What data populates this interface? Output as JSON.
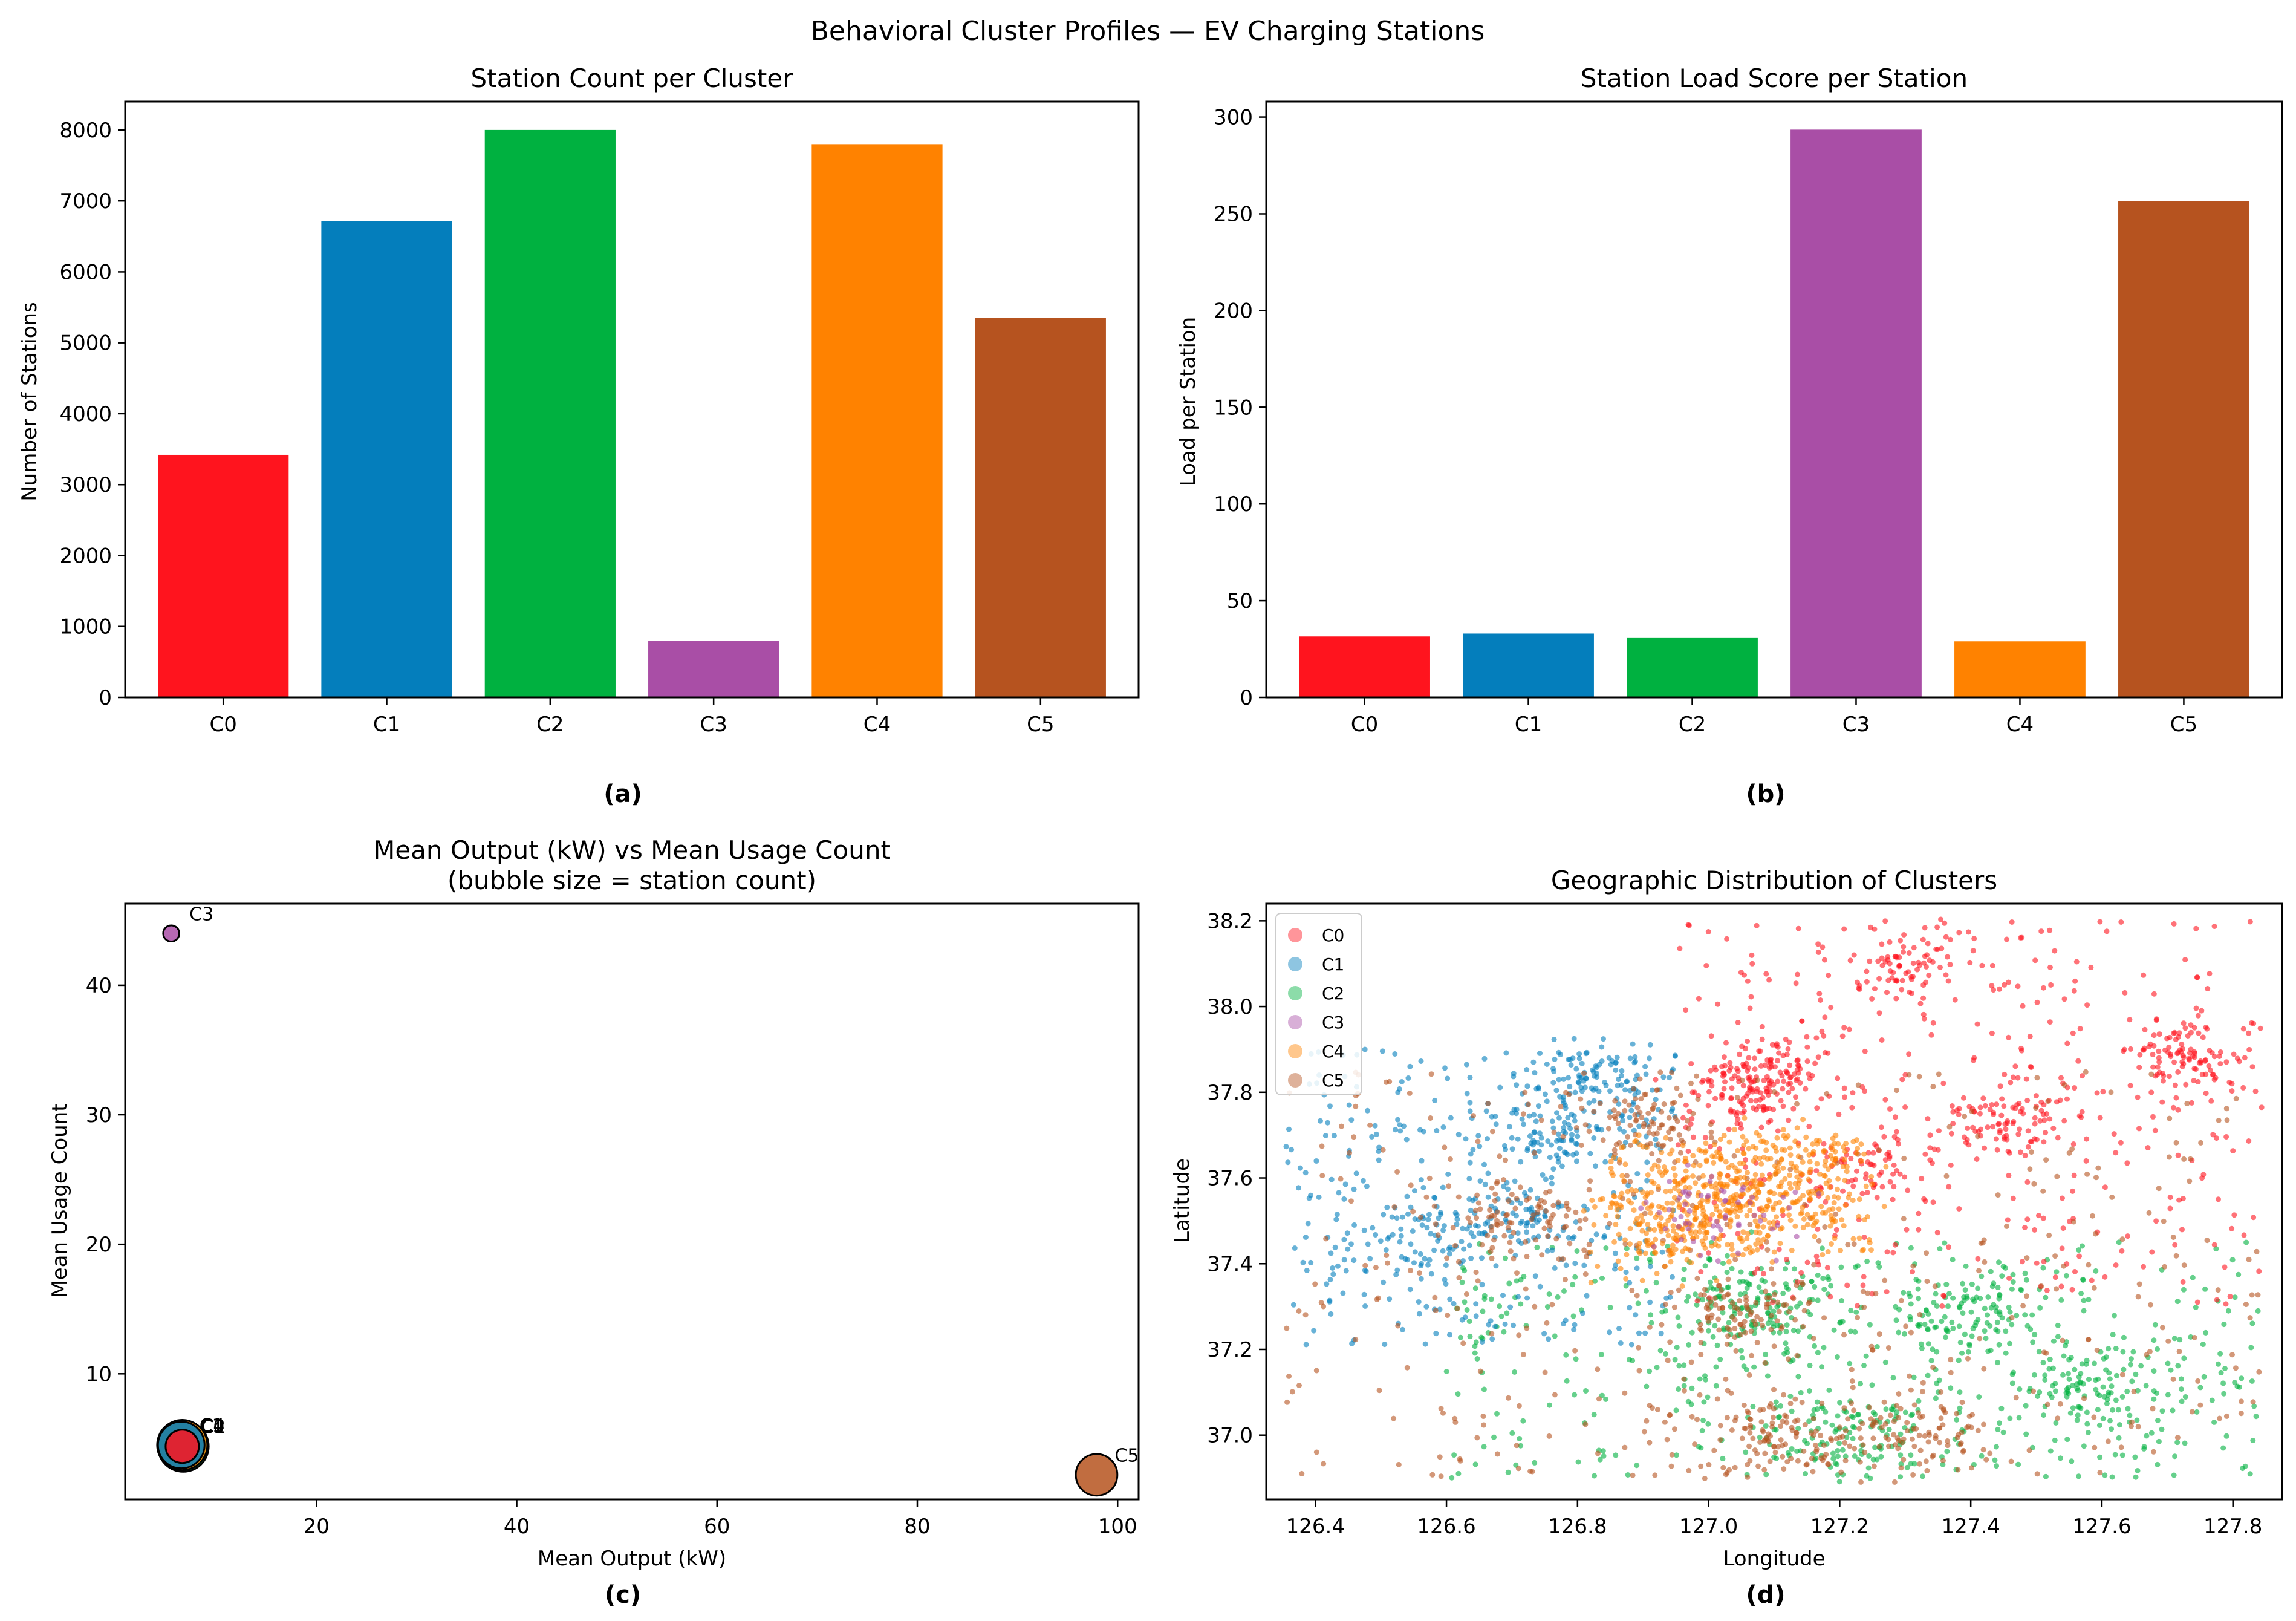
{
  "suptitle": "Behavioral Cluster Profiles — EV Charging Stations",
  "colors": {
    "C0": "#ff141e",
    "C1": "#047ebc",
    "C2": "#00b140",
    "C3": "#a94ea6",
    "C4": "#ff8200",
    "C5": "#b6531f"
  },
  "chart_data": [
    {
      "id": "a",
      "type": "bar",
      "title": "Station Count per Cluster",
      "panel_label": "(a)",
      "xlabel": "",
      "ylabel": "Number of Stations",
      "categories": [
        "C0",
        "C1",
        "C2",
        "C3",
        "C4",
        "C5"
      ],
      "values": [
        3420,
        6720,
        8000,
        800,
        7800,
        5350
      ],
      "ylim": [
        0,
        8400
      ],
      "yticks": [
        0,
        1000,
        2000,
        3000,
        4000,
        5000,
        6000,
        7000,
        8000
      ],
      "grid": false
    },
    {
      "id": "b",
      "type": "bar",
      "title": "Station Load Score per Station",
      "panel_label": "(b)",
      "xlabel": "",
      "ylabel": "Load per Station",
      "categories": [
        "C0",
        "C1",
        "C2",
        "C3",
        "C4",
        "C5"
      ],
      "values": [
        31.5,
        33,
        31,
        293.5,
        29,
        256.5
      ],
      "ylim": [
        0,
        308
      ],
      "yticks": [
        0,
        50,
        100,
        150,
        200,
        250,
        300
      ],
      "grid": false
    },
    {
      "id": "c",
      "type": "scatter",
      "title": "Mean Output (kW) vs Mean Usage Count",
      "subtitle": "(bubble size = station count)",
      "panel_label": "(c)",
      "xlabel": "Mean Output (kW)",
      "ylabel": "Mean Usage Count",
      "xlim": [
        0.9,
        102.1
      ],
      "ylim": [
        0.3,
        46.3
      ],
      "xticks": [
        20,
        40,
        60,
        80,
        100
      ],
      "yticks": [
        10,
        20,
        30,
        40
      ],
      "points": [
        {
          "label": "C0",
          "x": 6.6,
          "y": 4.4,
          "size": 3420
        },
        {
          "label": "C1",
          "x": 6.5,
          "y": 4.5,
          "size": 6720
        },
        {
          "label": "C2",
          "x": 6.7,
          "y": 4.4,
          "size": 8000
        },
        {
          "label": "C3",
          "x": 5.5,
          "y": 44.0,
          "size": 800
        },
        {
          "label": "C4",
          "x": 6.6,
          "y": 4.5,
          "size": 7800
        },
        {
          "label": "C5",
          "x": 97.9,
          "y": 2.2,
          "size": 5350
        }
      ],
      "grid": false
    },
    {
      "id": "d",
      "type": "scatter",
      "title": "Geographic Distribution of Clusters",
      "panel_label": "(d)",
      "xlabel": "Longitude",
      "ylabel": "Latitude",
      "xlim": [
        126.325,
        127.875
      ],
      "ylim": [
        36.85,
        38.24
      ],
      "xticks": [
        126.4,
        126.6,
        126.8,
        127.0,
        127.2,
        127.4,
        127.6,
        127.8
      ],
      "yticks": [
        37.0,
        37.2,
        37.4,
        37.6,
        37.8,
        38.0,
        38.2
      ],
      "xtick_labels": [
        "126.4",
        "126.6",
        "126.8",
        "127.0",
        "127.2",
        "127.4",
        "127.6",
        "127.8"
      ],
      "ytick_labels": [
        "37.0",
        "37.2",
        "37.4",
        "37.6",
        "37.8",
        "38.0",
        "38.2"
      ],
      "legend": [
        "C0",
        "C1",
        "C2",
        "C3",
        "C4",
        "C5"
      ],
      "legend_position": "upper-left",
      "clusters": [
        {
          "label": "C0",
          "region": {
            "lon": [
              126.95,
              127.85
            ],
            "lat": [
              37.3,
              38.2
            ]
          },
          "hotspots": [
            [
              127.74,
              37.88
            ],
            [
              127.1,
              37.86
            ],
            [
              127.25,
              37.62
            ],
            [
              127.05,
              37.8
            ],
            [
              127.3,
              38.1
            ],
            [
              127.45,
              37.73
            ]
          ]
        },
        {
          "label": "C1",
          "region": {
            "lon": [
              126.35,
              126.95
            ],
            "lat": [
              37.2,
              37.9
            ]
          },
          "hotspots": [
            [
              126.77,
              37.7
            ],
            [
              126.72,
              37.5
            ],
            [
              126.82,
              37.83
            ],
            [
              126.55,
              37.46
            ]
          ]
        },
        {
          "label": "C2",
          "region": {
            "lon": [
              126.6,
              127.85
            ],
            "lat": [
              36.9,
              37.45
            ]
          },
          "hotspots": [
            [
              127.07,
              37.3
            ],
            [
              127.4,
              37.28
            ],
            [
              127.6,
              37.12
            ],
            [
              127.22,
              37.0
            ]
          ]
        },
        {
          "label": "C3",
          "region": {
            "lon": [
              126.9,
              127.2
            ],
            "lat": [
              37.4,
              37.6
            ]
          },
          "hotspots": [
            [
              127.0,
              37.52
            ]
          ]
        },
        {
          "label": "C4",
          "region": {
            "lon": [
              126.85,
              127.25
            ],
            "lat": [
              37.42,
              37.7
            ]
          },
          "hotspots": [
            [
              127.05,
              37.55
            ],
            [
              126.95,
              37.5
            ],
            [
              127.1,
              37.6
            ]
          ]
        },
        {
          "label": "C5",
          "region": {
            "lon": [
              126.35,
              127.85
            ],
            "lat": [
              36.9,
              37.85
            ]
          },
          "hotspots": [
            [
              126.72,
              37.5
            ],
            [
              127.05,
              37.28
            ],
            [
              126.9,
              37.72
            ],
            [
              127.1,
              37.0
            ],
            [
              127.3,
              37.0
            ]
          ]
        }
      ],
      "grid": false
    }
  ]
}
